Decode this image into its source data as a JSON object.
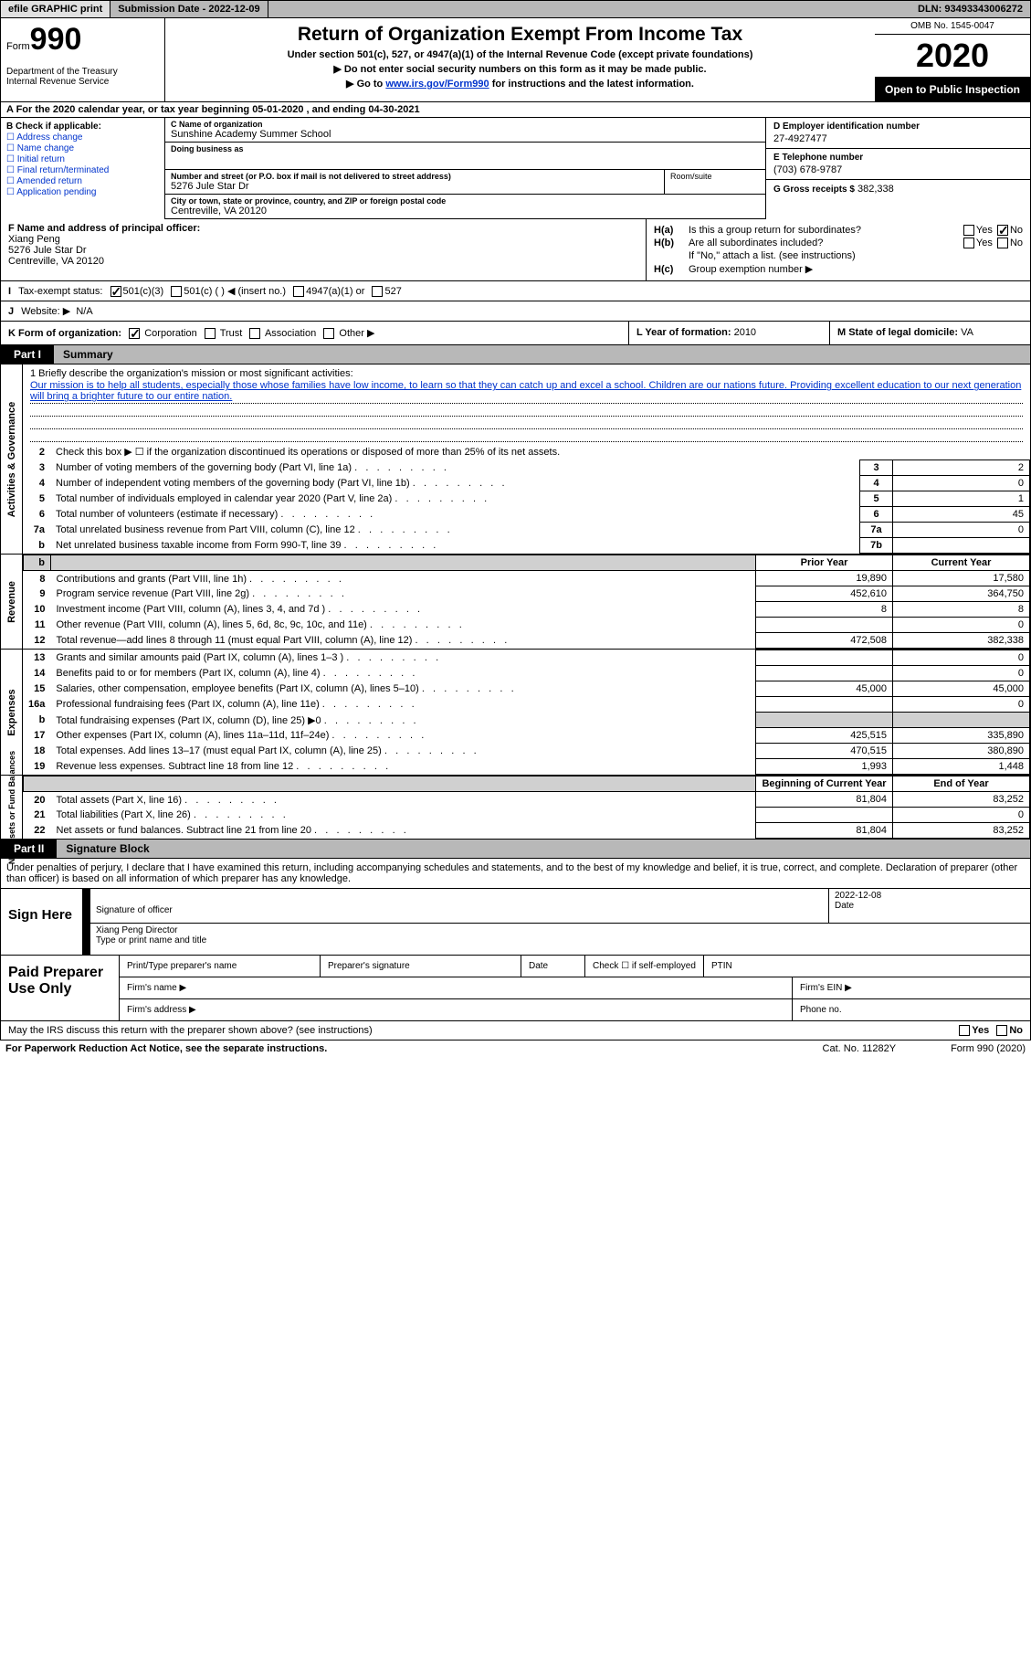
{
  "topbar": {
    "efile": "efile GRAPHIC print",
    "submission_label": "Submission Date - ",
    "submission_date": "2022-12-09",
    "dln_label": "DLN: ",
    "dln": "93493343006272"
  },
  "header": {
    "form_label": "Form",
    "form_num": "990",
    "dept": "Department of the Treasury\nInternal Revenue Service",
    "title": "Return of Organization Exempt From Income Tax",
    "subtitle": "Under section 501(c), 527, or 4947(a)(1) of the Internal Revenue Code (except private foundations)",
    "instr1": "▶ Do not enter social security numbers on this form as it may be made public.",
    "instr2_pre": "▶ Go to ",
    "instr2_link": "www.irs.gov/Form990",
    "instr2_post": " for instructions and the latest information.",
    "omb": "OMB No. 1545-0047",
    "year": "2020",
    "open": "Open to Public Inspection"
  },
  "row_a": "A   For the 2020 calendar year, or tax year beginning 05-01-2020     , and ending 04-30-2021",
  "col_b": {
    "label": "B Check if applicable:",
    "lines": [
      "☐ Address change",
      "☐ Name change",
      "☐ Initial return",
      "☐ Final return/terminated",
      "☐ Amended return",
      "☐ Application pending"
    ]
  },
  "col_c": {
    "name_label": "C Name of organization",
    "org_name": "Sunshine Academy Summer School",
    "dba_label": "Doing business as",
    "addr_label": "Number and street (or P.O. box if mail is not delivered to street address)",
    "addr": "5276 Jule Star Dr",
    "room_label": "Room/suite",
    "city_label": "City or town, state or province, country, and ZIP or foreign postal code",
    "city": "Centreville, VA  20120"
  },
  "col_d": {
    "ein_label": "D Employer identification number",
    "ein": "27-4927477",
    "tel_label": "E Telephone number",
    "tel": "(703) 678-9787",
    "gross_label": "G Gross receipts $",
    "gross": "382,338"
  },
  "f": {
    "label": "F  Name and address of principal officer:",
    "name": "Xiang Peng",
    "addr1": "5276 Jule Star Dr",
    "addr2": "Centreville, VA  20120"
  },
  "h": {
    "a_label": "Is this a group return for subordinates?",
    "b_label": "Are all subordinates included?",
    "b_note": "If \"No,\" attach a list. (see instructions)",
    "c_label": "Group exemption number ▶"
  },
  "i": {
    "tag": "I",
    "label": "Tax-exempt status:",
    "opts": [
      "501(c)(3)",
      "501(c) (  ) ◀ (insert no.)",
      "4947(a)(1) or",
      "527"
    ]
  },
  "j": {
    "tag": "J",
    "label": "Website: ▶",
    "val": "N/A"
  },
  "k": {
    "label": "K Form of organization:",
    "opts": [
      "Corporation",
      "Trust",
      "Association",
      "Other ▶"
    ]
  },
  "l": {
    "label": "L Year of formation:",
    "val": "2010"
  },
  "m": {
    "label": "M State of legal domicile:",
    "val": "VA"
  },
  "part1": {
    "tab": "Part I",
    "title": "Summary"
  },
  "mission": {
    "q": "1   Briefly describe the organization's mission or most significant activities:",
    "text": "Our mission is to help all students, especially those whose families have low income, to learn so that they can catch up and excel a school. Children are our nations future. Providing excellent education to our next generation will bring a brighter future to our entire nation."
  },
  "line2": "Check this box ▶ ☐  if the organization discontinued its operations or disposed of more than 25% of its net assets.",
  "gov_lines": [
    {
      "n": "3",
      "d": "Number of voting members of the governing body (Part VI, line 1a)",
      "b": "3",
      "v": "2"
    },
    {
      "n": "4",
      "d": "Number of independent voting members of the governing body (Part VI, line 1b)",
      "b": "4",
      "v": "0"
    },
    {
      "n": "5",
      "d": "Total number of individuals employed in calendar year 2020 (Part V, line 2a)",
      "b": "5",
      "v": "1"
    },
    {
      "n": "6",
      "d": "Total number of volunteers (estimate if necessary)",
      "b": "6",
      "v": "45"
    },
    {
      "n": "7a",
      "d": "Total unrelated business revenue from Part VIII, column (C), line 12",
      "b": "7a",
      "v": "0"
    },
    {
      "n": "b",
      "d": "Net unrelated business taxable income from Form 990-T, line 39",
      "b": "7b",
      "v": ""
    }
  ],
  "py_hdr": "Prior Year",
  "cy_hdr": "Current Year",
  "rev_lines": [
    {
      "n": "8",
      "d": "Contributions and grants (Part VIII, line 1h)",
      "py": "19,890",
      "cy": "17,580"
    },
    {
      "n": "9",
      "d": "Program service revenue (Part VIII, line 2g)",
      "py": "452,610",
      "cy": "364,750"
    },
    {
      "n": "10",
      "d": "Investment income (Part VIII, column (A), lines 3, 4, and 7d )",
      "py": "8",
      "cy": "8"
    },
    {
      "n": "11",
      "d": "Other revenue (Part VIII, column (A), lines 5, 6d, 8c, 9c, 10c, and 11e)",
      "py": "",
      "cy": "0"
    },
    {
      "n": "12",
      "d": "Total revenue—add lines 8 through 11 (must equal Part VIII, column (A), line 12)",
      "py": "472,508",
      "cy": "382,338"
    }
  ],
  "exp_lines": [
    {
      "n": "13",
      "d": "Grants and similar amounts paid (Part IX, column (A), lines 1–3 )",
      "py": "",
      "cy": "0"
    },
    {
      "n": "14",
      "d": "Benefits paid to or for members (Part IX, column (A), line 4)",
      "py": "",
      "cy": "0"
    },
    {
      "n": "15",
      "d": "Salaries, other compensation, employee benefits (Part IX, column (A), lines 5–10)",
      "py": "45,000",
      "cy": "45,000"
    },
    {
      "n": "16a",
      "d": "Professional fundraising fees (Part IX, column (A), line 11e)",
      "py": "",
      "cy": "0"
    },
    {
      "n": "b",
      "d": "Total fundraising expenses (Part IX, column (D), line 25) ▶0",
      "py": "shade",
      "cy": "shade"
    },
    {
      "n": "17",
      "d": "Other expenses (Part IX, column (A), lines 11a–11d, 11f–24e)",
      "py": "425,515",
      "cy": "335,890"
    },
    {
      "n": "18",
      "d": "Total expenses. Add lines 13–17 (must equal Part IX, column (A), line 25)",
      "py": "470,515",
      "cy": "380,890"
    },
    {
      "n": "19",
      "d": "Revenue less expenses. Subtract line 18 from line 12",
      "py": "1,993",
      "cy": "1,448"
    }
  ],
  "boy_hdr": "Beginning of Current Year",
  "eoy_hdr": "End of Year",
  "na_lines": [
    {
      "n": "20",
      "d": "Total assets (Part X, line 16)",
      "py": "81,804",
      "cy": "83,252"
    },
    {
      "n": "21",
      "d": "Total liabilities (Part X, line 26)",
      "py": "",
      "cy": "0"
    },
    {
      "n": "22",
      "d": "Net assets or fund balances. Subtract line 21 from line 20",
      "py": "81,804",
      "cy": "83,252"
    }
  ],
  "vtabs": {
    "gov": "Activities & Governance",
    "rev": "Revenue",
    "exp": "Expenses",
    "na": "Net Assets or\nFund Balances"
  },
  "part2": {
    "tab": "Part II",
    "title": "Signature Block"
  },
  "sig_intro": "Under penalties of perjury, I declare that I have examined this return, including accompanying schedules and statements, and to the best of my knowledge and belief, it is true, correct, and complete. Declaration of preparer (other than officer) is based on all information of which preparer has any knowledge.",
  "sign_here": "Sign Here",
  "sig": {
    "officer_label": "Signature of officer",
    "date_label": "Date",
    "date_val": "2022-12-08",
    "name": "Xiang Peng  Director",
    "name_label": "Type or print name and title"
  },
  "paid": {
    "title": "Paid Preparer Use Only",
    "r1": [
      "Print/Type preparer's name",
      "Preparer's signature",
      "Date",
      "Check ☐ if self-employed",
      "PTIN"
    ],
    "r2l": "Firm's name   ▶",
    "r2r": "Firm's EIN ▶",
    "r3l": "Firm's address ▶",
    "r3r": "Phone no."
  },
  "irs_discuss": "May the IRS discuss this return with the preparer shown above? (see instructions)",
  "footer": {
    "pra": "For Paperwork Reduction Act Notice, see the separate instructions.",
    "cat": "Cat. No. 11282Y",
    "form": "Form 990 (2020)"
  }
}
